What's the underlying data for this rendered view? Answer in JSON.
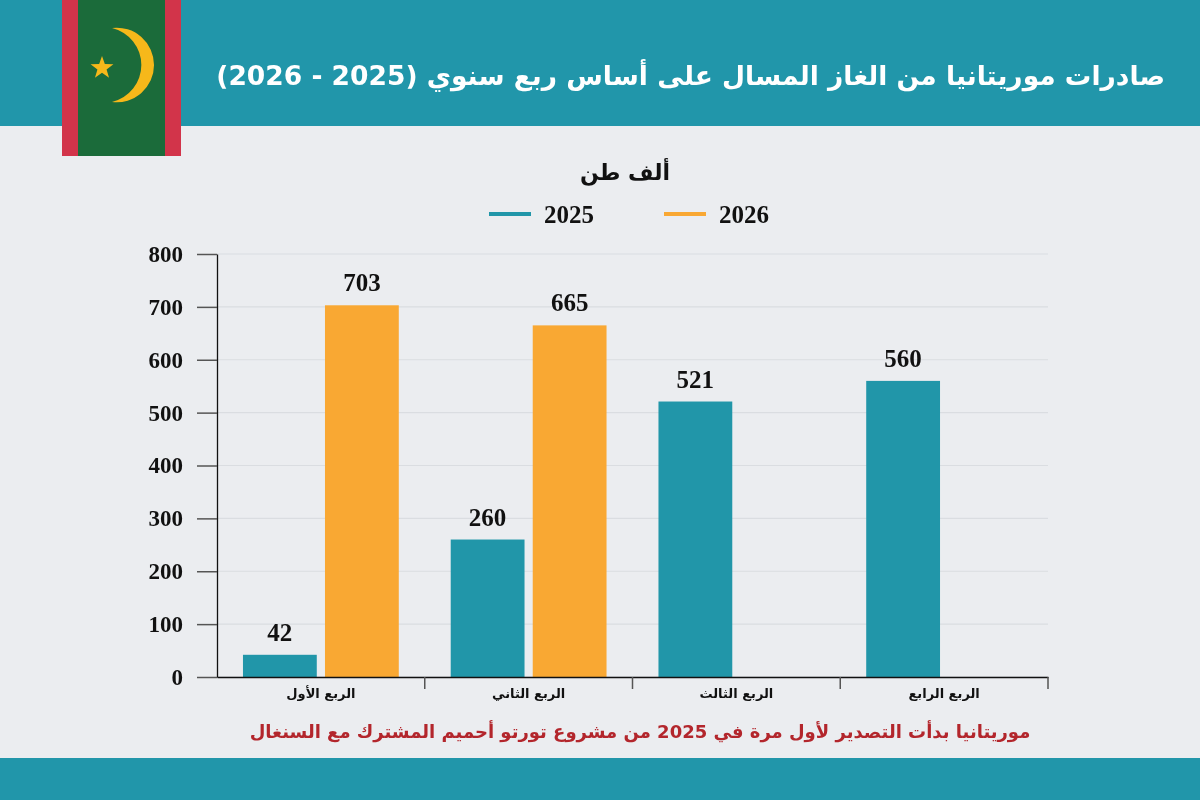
{
  "chart_data": {
    "type": "bar",
    "title": "صادرات موريتانيا من الغاز المسال على أساس ربع سنوي (2025 - 2026)",
    "ylabel": "ألف طن",
    "categories": [
      "الربع الأول",
      "الربع الثاني",
      "الربع الثالث",
      "الربع الرابع"
    ],
    "series": [
      {
        "name": "2025",
        "color": "#2196a9",
        "values": [
          42,
          260,
          521,
          560
        ]
      },
      {
        "name": "2026",
        "color": "#f9a833",
        "values": [
          703,
          665,
          null,
          null
        ]
      }
    ],
    "ylim": [
      0,
      800
    ],
    "yticks": [
      0,
      100,
      200,
      300,
      400,
      500,
      600,
      700,
      800
    ],
    "grid": "y",
    "legend": "top",
    "data_labels": true,
    "annotations": [
      "موريتانيا بدأت التصدير لأول مرة في 2025 من مشروع تورتو أحميم المشترك مع السنغال"
    ]
  }
}
